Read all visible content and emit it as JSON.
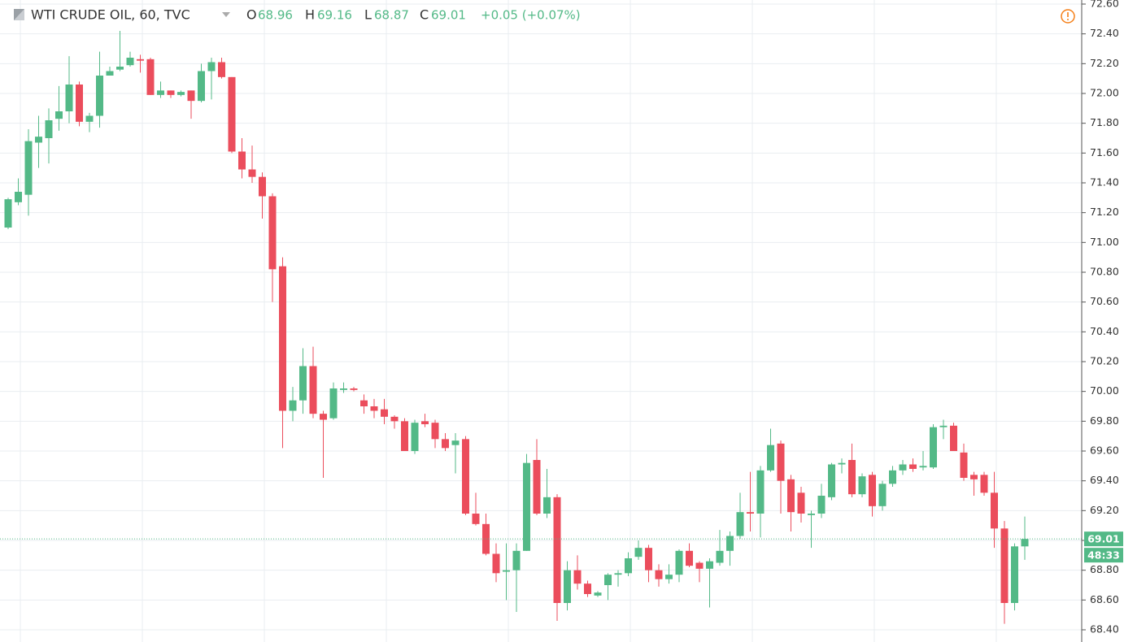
{
  "chart_data": {
    "type": "candlestick",
    "title": "WTI CRUDE OIL, 60, TVC",
    "legend": [
      {
        "label": "O",
        "value": 68.96
      },
      {
        "label": "H",
        "value": 69.16
      },
      {
        "label": "L",
        "value": 68.87
      },
      {
        "label": "C",
        "value": 69.01
      }
    ],
    "change": "+0.05 (+0.07%)",
    "last_price": 69.01,
    "countdown": "48:33",
    "up_color": "#53b987",
    "down_color": "#eb4d5c",
    "ylim": [
      68.4,
      72.6
    ],
    "yticks": [
      {
        "value": 68.4,
        "label": "68.40"
      },
      {
        "value": 68.6,
        "label": "68.60"
      },
      {
        "value": 68.8,
        "label": "68.80"
      },
      {
        "value": 69.0,
        "label": "69.00"
      },
      {
        "value": 69.2,
        "label": "69.20"
      },
      {
        "value": 69.4,
        "label": "69.40"
      },
      {
        "value": 69.6,
        "label": "69.60"
      },
      {
        "value": 69.8,
        "label": "69.80"
      },
      {
        "value": 70.0,
        "label": "70.00"
      },
      {
        "value": 70.2,
        "label": "70.20"
      },
      {
        "value": 70.4,
        "label": "70.40"
      },
      {
        "value": 70.6,
        "label": "70.60"
      },
      {
        "value": 70.8,
        "label": "70.80"
      },
      {
        "value": 71.0,
        "label": "71.00"
      },
      {
        "value": 71.2,
        "label": "71.20"
      },
      {
        "value": 71.4,
        "label": "71.40"
      },
      {
        "value": 71.6,
        "label": "71.60"
      },
      {
        "value": 71.8,
        "label": "71.80"
      },
      {
        "value": 72.0,
        "label": "72.00"
      },
      {
        "value": 72.2,
        "label": "72.20"
      },
      {
        "value": 72.4,
        "label": "72.40"
      },
      {
        "value": 72.6,
        "label": "72.60"
      }
    ],
    "grid": true,
    "open": [
      71.1,
      71.27,
      71.32,
      71.67,
      71.7,
      71.83,
      71.88,
      72.06,
      71.81,
      71.85,
      72.12,
      72.16,
      72.19,
      72.23,
      72.23,
      71.99,
      72.02,
      71.99,
      72.02,
      71.95,
      72.15,
      72.21,
      72.11,
      71.61,
      71.49,
      71.44,
      71.31,
      70.84,
      69.87,
      69.94,
      70.17,
      69.85,
      69.82,
      70.01,
      70.02,
      69.94,
      69.9,
      69.88,
      69.83,
      69.8,
      69.6,
      69.8,
      69.79,
      69.68,
      69.64,
      69.68,
      69.18,
      69.11,
      68.91,
      68.79,
      68.8,
      68.93,
      69.54,
      69.18,
      69.29,
      68.58,
      68.8,
      68.71,
      68.63,
      68.7,
      68.77,
      68.78,
      68.89,
      68.95,
      68.8,
      68.74,
      68.77,
      68.93,
      68.85,
      68.81,
      68.85,
      68.93,
      69.03,
      69.19,
      69.18,
      69.47,
      69.65,
      69.41,
      69.32,
      69.17,
      69.18,
      69.29,
      69.51,
      69.54,
      69.31,
      69.44,
      69.23,
      69.38,
      69.47,
      69.51,
      69.49,
      69.49,
      69.76,
      69.77,
      69.59,
      69.44,
      69.44,
      69.32,
      69.08,
      68.58,
      68.96
    ],
    "high": [
      71.3,
      71.43,
      71.76,
      71.85,
      71.9,
      72.05,
      72.25,
      72.08,
      71.87,
      72.28,
      72.18,
      72.42,
      72.28,
      72.26,
      72.24,
      72.08,
      72.02,
      72.02,
      72.02,
      72.2,
      72.24,
      72.24,
      72.11,
      71.7,
      71.65,
      71.47,
      71.33,
      70.9,
      70.03,
      70.29,
      70.3,
      69.87,
      70.06,
      70.06,
      70.03,
      69.98,
      69.95,
      69.95,
      69.84,
      69.82,
      69.81,
      69.85,
      69.81,
      69.72,
      69.72,
      69.7,
      69.32,
      69.18,
      68.98,
      68.98,
      68.98,
      69.58,
      69.68,
      69.48,
      69.31,
      68.86,
      68.9,
      68.73,
      68.66,
      68.78,
      68.8,
      68.92,
      69.0,
      68.97,
      68.84,
      68.84,
      68.94,
      68.98,
      68.86,
      68.88,
      69.07,
      69.06,
      69.32,
      69.46,
      69.5,
      69.75,
      69.67,
      69.44,
      69.36,
      69.2,
      69.38,
      69.52,
      69.55,
      69.65,
      69.45,
      69.46,
      69.4,
      69.5,
      69.54,
      69.55,
      69.6,
      69.78,
      69.81,
      69.79,
      69.65,
      69.46,
      69.46,
      69.46,
      69.13,
      68.98,
      69.16
    ],
    "low": [
      71.09,
      71.25,
      71.18,
      71.5,
      71.53,
      71.75,
      71.8,
      71.78,
      71.74,
      71.77,
      72.12,
      72.15,
      72.18,
      72.14,
      71.99,
      71.97,
      71.97,
      71.98,
      71.83,
      71.94,
      71.96,
      72.1,
      71.6,
      71.43,
      71.4,
      71.16,
      70.6,
      69.62,
      69.8,
      69.85,
      69.82,
      69.42,
      69.81,
      69.99,
      70.0,
      69.85,
      69.82,
      69.78,
      69.75,
      69.6,
      69.58,
      69.76,
      69.62,
      69.6,
      69.45,
      69.17,
      69.1,
      68.9,
      68.72,
      68.6,
      68.52,
      68.93,
      69.17,
      69.15,
      68.46,
      68.53,
      68.67,
      68.62,
      68.62,
      68.6,
      68.69,
      68.76,
      68.87,
      68.72,
      68.69,
      68.71,
      68.72,
      68.82,
      68.72,
      68.55,
      68.83,
      68.83,
      69.01,
      69.06,
      69.02,
      69.46,
      69.18,
      69.06,
      69.12,
      68.95,
      69.15,
      69.27,
      69.45,
      69.29,
      69.29,
      69.16,
      69.2,
      69.36,
      69.44,
      69.46,
      69.47,
      69.48,
      69.68,
      69.6,
      69.4,
      69.3,
      69.3,
      68.95,
      68.44,
      68.53,
      68.87
    ],
    "close": [
      71.29,
      71.34,
      71.68,
      71.71,
      71.82,
      71.88,
      72.06,
      71.81,
      71.85,
      72.12,
      72.15,
      72.18,
      72.24,
      72.22,
      71.99,
      72.02,
      71.99,
      72.01,
      71.95,
      72.15,
      72.21,
      72.11,
      71.61,
      71.49,
      71.44,
      71.31,
      70.82,
      69.87,
      69.94,
      70.17,
      69.85,
      69.81,
      70.02,
      70.02,
      70.01,
      69.9,
      69.87,
      69.83,
      69.8,
      69.6,
      69.79,
      69.78,
      69.68,
      69.62,
      69.67,
      69.18,
      69.11,
      68.91,
      68.78,
      68.8,
      68.93,
      69.52,
      69.18,
      69.29,
      68.58,
      68.8,
      68.71,
      68.64,
      68.65,
      68.77,
      68.78,
      68.88,
      68.95,
      68.8,
      68.74,
      68.77,
      68.93,
      68.83,
      68.81,
      68.86,
      68.93,
      69.03,
      69.19,
      69.18,
      69.47,
      69.64,
      69.4,
      69.19,
      69.18,
      69.18,
      69.3,
      69.51,
      69.52,
      69.31,
      69.43,
      69.23,
      69.38,
      69.47,
      69.51,
      69.48,
      69.5,
      69.76,
      69.77,
      69.6,
      69.42,
      69.41,
      69.32,
      69.08,
      68.58,
      68.96,
      69.01
    ]
  }
}
